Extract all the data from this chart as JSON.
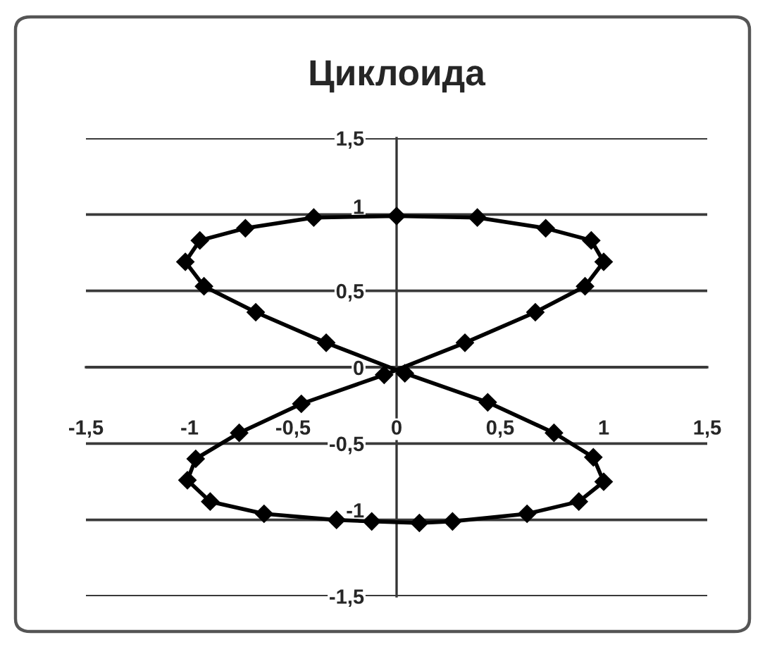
{
  "chart_data": {
    "type": "line",
    "title": "Циклоида",
    "series": [
      {
        "color": "#000000",
        "x": [
          -1.02,
          -0.95,
          -0.73,
          -0.4,
          0,
          0.39,
          0.72,
          0.94,
          1.0
        ],
        "values": [
          0.69,
          0.83,
          0.91,
          0.98,
          0.99,
          0.98,
          0.91,
          0.83,
          0.69
        ]
      },
      {
        "color": "#000000",
        "x": [
          1.0,
          0.91,
          0.67,
          0.33,
          -0.06,
          -0.46,
          -0.76,
          -0.97,
          -1.01
        ],
        "values": [
          0.69,
          0.53,
          0.36,
          0.16,
          -0.05,
          -0.24,
          -0.43,
          -0.6,
          -0.74
        ]
      },
      {
        "color": "#000000",
        "x": [
          -1.01,
          -0.9,
          -0.64,
          -0.29,
          -0.12,
          0.11,
          0.27,
          0.63,
          0.88,
          1.0
        ],
        "values": [
          -0.74,
          -0.88,
          -0.96,
          -1.0,
          -1.01,
          -1.02,
          -1.01,
          -0.96,
          -0.88,
          -0.75
        ]
      },
      {
        "color": "#000000",
        "x": [
          1.0,
          0.95,
          0.76,
          0.44,
          0.04,
          -0.34,
          -0.68,
          -0.93,
          -1.02
        ],
        "values": [
          -0.75,
          -0.59,
          -0.43,
          -0.23,
          -0.04,
          0.16,
          0.36,
          0.53,
          0.69
        ]
      }
    ],
    "marker": "diamond",
    "line_style": "solid",
    "xlim": [
      -1.5,
      1.5
    ],
    "ylim": [
      -1.5,
      1.5
    ],
    "xticks": [
      {
        "value": -1.5,
        "label": "-1,5"
      },
      {
        "value": -1,
        "label": "-1"
      },
      {
        "value": -0.5,
        "label": "-0,5"
      },
      {
        "value": 0,
        "label": "0"
      },
      {
        "value": 0.5,
        "label": "0,5"
      },
      {
        "value": 1,
        "label": "1"
      },
      {
        "value": 1.5,
        "label": "1,5"
      }
    ],
    "yticks": [
      {
        "value": -1.5,
        "label": "-1,5"
      },
      {
        "value": -1,
        "label": "-1"
      },
      {
        "value": -0.5,
        "label": "-0,5"
      },
      {
        "value": 0,
        "label": "0"
      },
      {
        "value": 0.5,
        "label": "0,5"
      },
      {
        "value": 1,
        "label": "1"
      },
      {
        "value": 1.5,
        "label": "1,5"
      }
    ],
    "grid": "y"
  }
}
